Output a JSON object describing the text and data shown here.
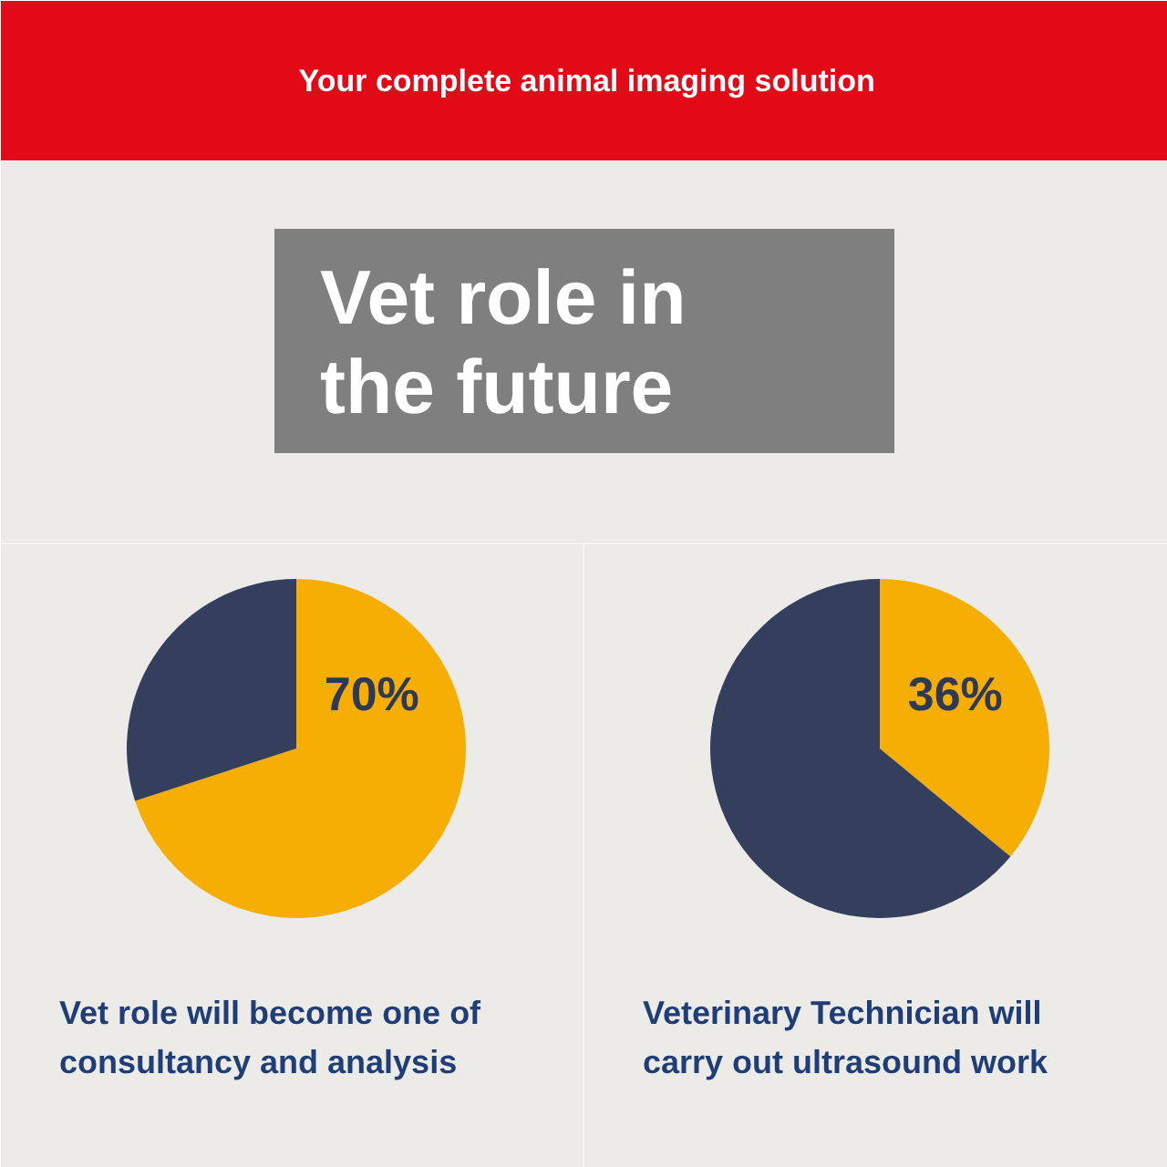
{
  "chart_data": [
    {
      "type": "pie",
      "title": "Vet role will become one of consultancy and analysis",
      "categories": [
        null,
        null
      ],
      "values": [
        70,
        30
      ],
      "colors": [
        "#f6ae02",
        "#333f5c"
      ],
      "value_labels": [
        "70%",
        null
      ],
      "annotations": [
        "Your complete animal imaging solution",
        "Vet role in the future"
      ]
    },
    {
      "type": "pie",
      "title": "Veterinary Technician will carry out ultrasound work",
      "categories": [
        null,
        null
      ],
      "values": [
        36,
        64
      ],
      "colors": [
        "#f6ae02",
        "#333f5c"
      ],
      "value_labels": [
        "36%",
        null
      ]
    }
  ]
}
